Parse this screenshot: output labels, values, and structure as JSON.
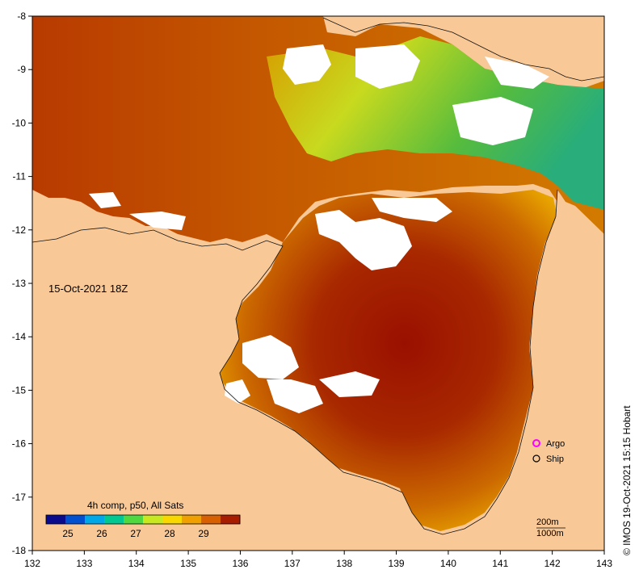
{
  "map": {
    "date_label": "15-Oct-2021 18Z",
    "credit": "© IMOS 19-Oct-2021 15:15 Hobart",
    "x_ticks": [
      "132",
      "133",
      "134",
      "135",
      "136",
      "137",
      "138",
      "139",
      "140",
      "141",
      "142",
      "143"
    ],
    "y_ticks": [
      "-8",
      "-9",
      "-10",
      "-11",
      "-12",
      "-13",
      "-14",
      "-15",
      "-16",
      "-17",
      "-18"
    ],
    "legend": {
      "title": "4h comp, p50, All Sats",
      "ticks": [
        "25",
        "26",
        "27",
        "28",
        "29"
      ],
      "colors": [
        "#0a0a8c",
        "#0050d0",
        "#00a8e8",
        "#00c890",
        "#50d840",
        "#c8e820",
        "#f8d800",
        "#f0a000",
        "#d86000",
        "#a81c00"
      ]
    },
    "markers": [
      {
        "label": "Argo",
        "color": "#ff00ff"
      },
      {
        "label": "Ship",
        "color": "#000000"
      }
    ],
    "contours": [
      "200m",
      "1000m"
    ],
    "colors": {
      "land": "#f9c897",
      "no_data": "#ffffff",
      "sst_hot": "#9c1400",
      "sst_warm": "#c84a00",
      "sst_mid": "#e08a00",
      "sst_cool": "#a8d020",
      "sst_cold": "#20b070"
    }
  }
}
